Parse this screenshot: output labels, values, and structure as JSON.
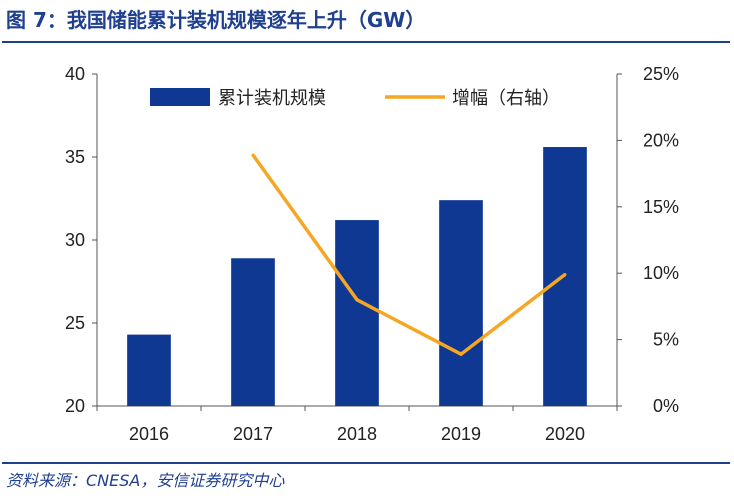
{
  "figure": {
    "title": "图 7：我国储能累计装机规模逐年上升（GW）",
    "source": "资料来源：CNESA，安信证券研究中心"
  },
  "colors": {
    "bar": "#0f3893",
    "line": "#f5a623",
    "title": "#1f3f8f",
    "axis": "#555555"
  },
  "chart_data": {
    "type": "bar",
    "categories": [
      "2016",
      "2017",
      "2018",
      "2019",
      "2020"
    ],
    "series": [
      {
        "name": "累计装机规模",
        "type": "bar",
        "axis": "left",
        "values": [
          24.3,
          28.9,
          31.2,
          32.4,
          35.6
        ]
      },
      {
        "name": "增幅（右轴）",
        "type": "line",
        "axis": "right",
        "values": [
          null,
          18.9,
          8.0,
          3.9,
          9.9
        ]
      }
    ],
    "left_axis": {
      "min": 20,
      "max": 40,
      "ticks": [
        20,
        25,
        30,
        35,
        40
      ],
      "tick_labels": [
        "20",
        "25",
        "30",
        "35",
        "40"
      ]
    },
    "right_axis": {
      "min": 0,
      "max": 25,
      "ticks": [
        0,
        5,
        10,
        15,
        20,
        25
      ],
      "tick_labels": [
        "0%",
        "5%",
        "10%",
        "15%",
        "20%",
        "25%"
      ]
    },
    "legend": {
      "placement": "top"
    },
    "grid": false
  }
}
